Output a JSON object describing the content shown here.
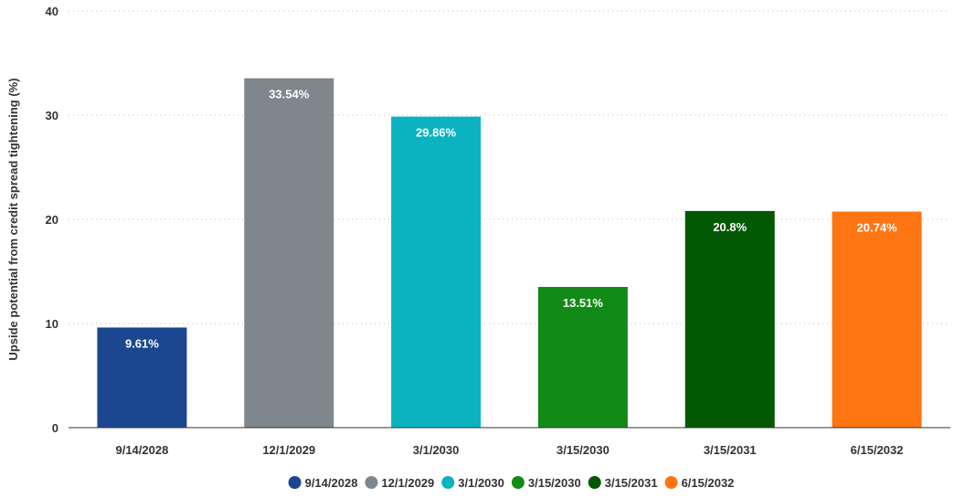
{
  "chart_data": {
    "type": "bar",
    "title": "",
    "xlabel": "",
    "ylabel": "Upside potential from credit spread tightening (%)",
    "ylim": [
      0,
      40
    ],
    "yticks": [
      0,
      10,
      20,
      30,
      40
    ],
    "grid": true,
    "legend_position": "bottom",
    "categories": [
      "9/14/2028",
      "12/1/2029",
      "3/1/2030",
      "3/15/2030",
      "3/15/2031",
      "6/15/2032"
    ],
    "values": [
      9.61,
      33.54,
      29.86,
      13.51,
      20.8,
      20.74
    ],
    "data_labels": [
      "9.61%",
      "33.54%",
      "29.86%",
      "13.51%",
      "20.8%",
      "20.74%"
    ],
    "colors": [
      "#1a478f",
      "#7f878d",
      "#0bb2bf",
      "#128a17",
      "#035803",
      "#ff7512"
    ],
    "legend": [
      "9/14/2028",
      "12/1/2029",
      "3/1/2030",
      "3/15/2030",
      "3/15/2031",
      "6/15/2032"
    ]
  }
}
